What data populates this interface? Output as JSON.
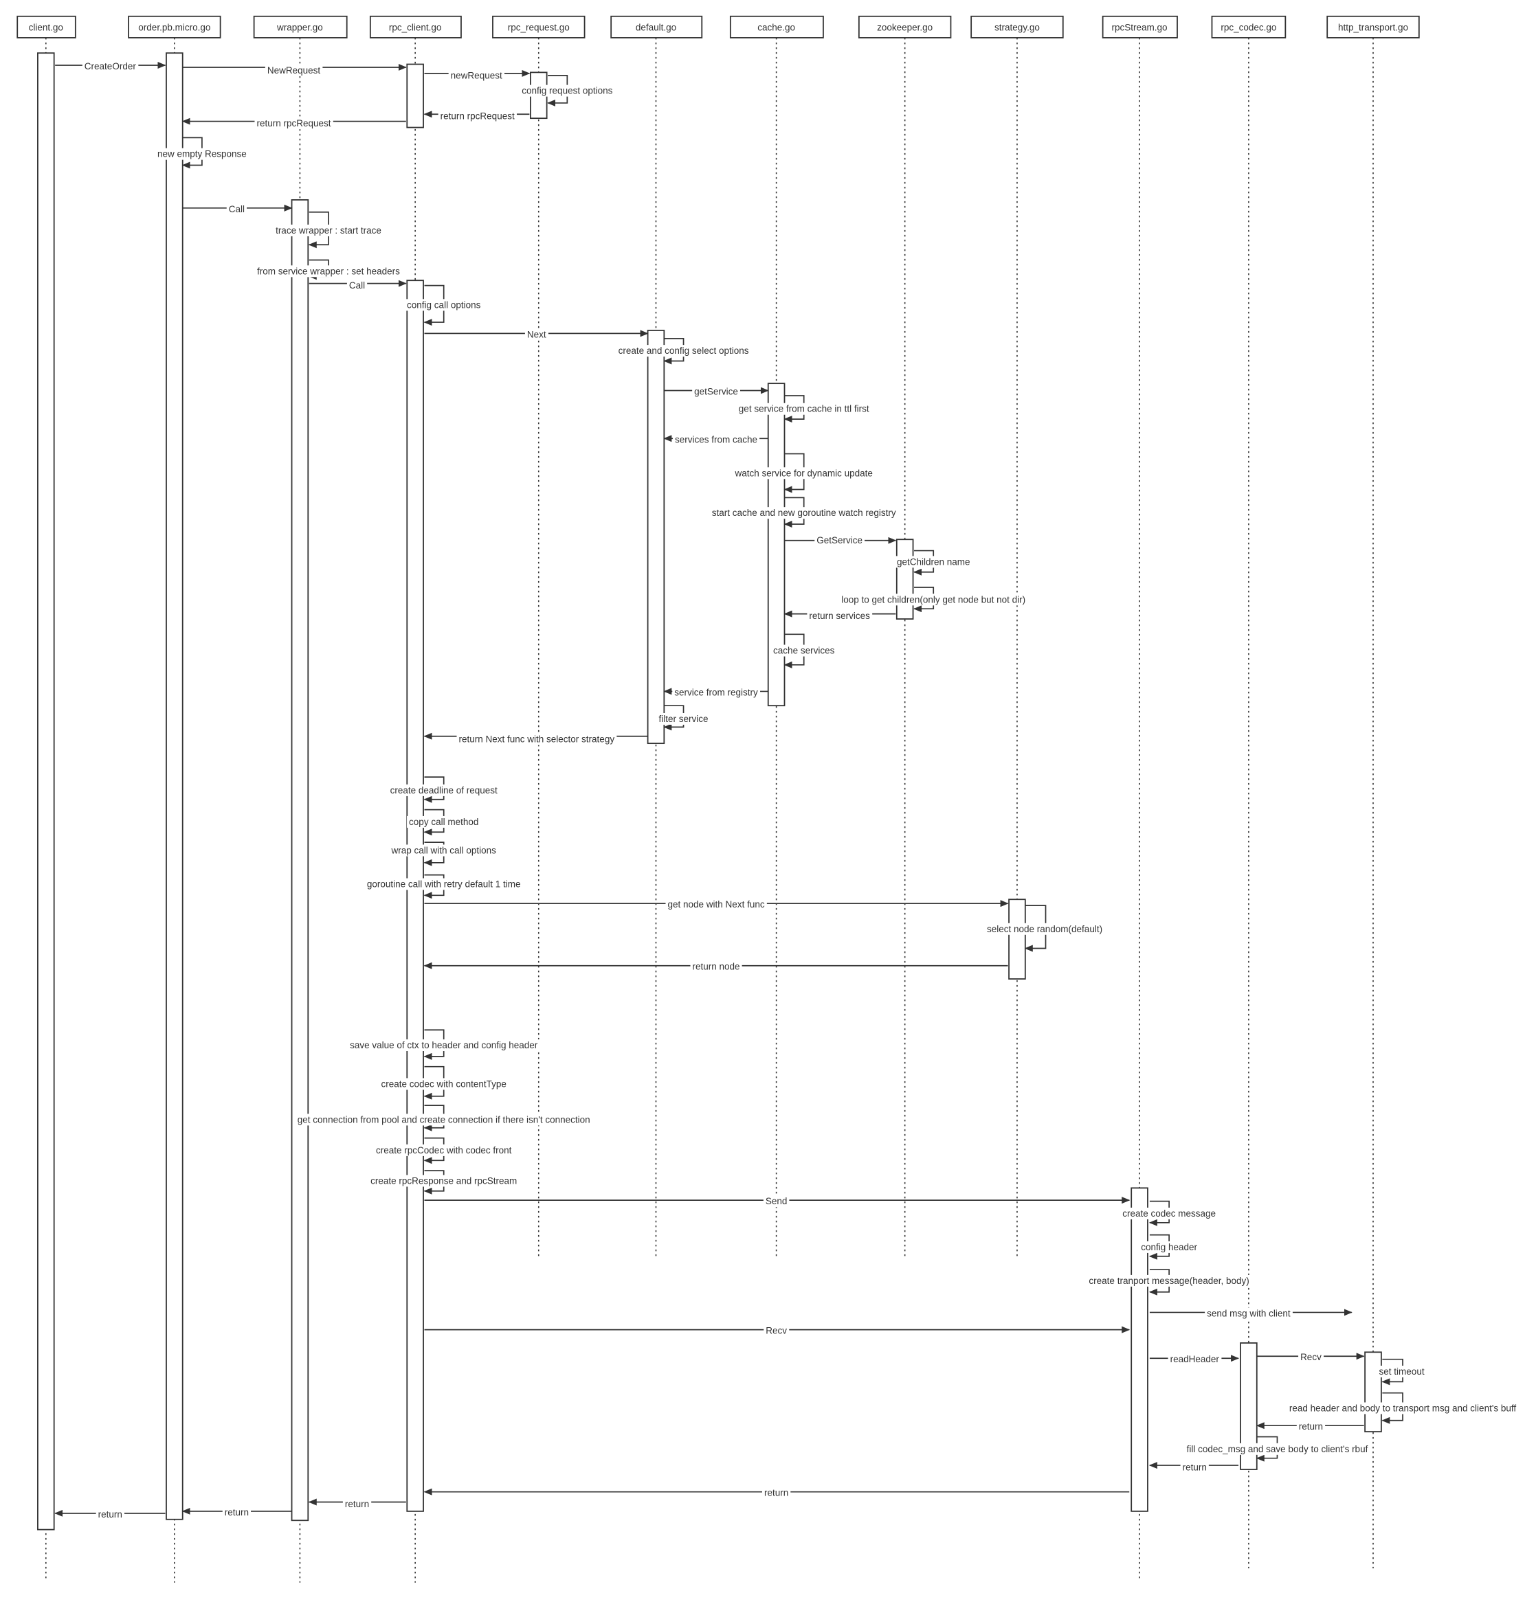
{
  "colors": {
    "line": "#333333",
    "text": "#333333",
    "highlight": "#e03131",
    "background": "#ffffff"
  },
  "participants": [
    {
      "id": "client",
      "label": "client.go"
    },
    {
      "id": "order",
      "label": "order.pb.micro.go"
    },
    {
      "id": "wrapper",
      "label": "wrapper.go"
    },
    {
      "id": "rpc_client",
      "label": "rpc_client.go"
    },
    {
      "id": "rpc_request",
      "label": "rpc_request.go"
    },
    {
      "id": "default",
      "label": "default.go"
    },
    {
      "id": "cache",
      "label": "cache.go"
    },
    {
      "id": "zookeeper",
      "label": "zookeeper.go"
    },
    {
      "id": "strategy",
      "label": "strategy.go"
    },
    {
      "id": "rpcStream",
      "label": "rpcStream.go"
    },
    {
      "id": "rpc_codec",
      "label": "rpc_codec.go"
    },
    {
      "id": "http_transport",
      "label": "http_transport.go"
    }
  ],
  "messages": [
    {
      "id": "create-order",
      "from": "client",
      "to": "order",
      "label": "CreateOrder"
    },
    {
      "id": "new-request",
      "from": "order",
      "to": "rpc_client",
      "label": "NewRequest"
    },
    {
      "id": "new-request-2",
      "from": "rpc_client",
      "to": "rpc_request",
      "label": "newRequest"
    },
    {
      "id": "config-request-options",
      "self": "rpc_request",
      "label": "config request options"
    },
    {
      "id": "return-rpc-request-1",
      "from": "rpc_request",
      "to": "rpc_client",
      "label": "return rpcRequest"
    },
    {
      "id": "return-rpc-request-2",
      "from": "rpc_client",
      "to": "order",
      "label": "return rpcRequest"
    },
    {
      "id": "new-empty-response",
      "self": "order",
      "label": "new empty Response"
    },
    {
      "id": "call-1",
      "from": "order",
      "to": "wrapper",
      "label": "Call"
    },
    {
      "id": "trace-wrapper",
      "self": "wrapper",
      "label": "trace wrapper : start trace"
    },
    {
      "id": "service-wrapper",
      "self": "wrapper",
      "label": "from service wrapper : set headers"
    },
    {
      "id": "call-2",
      "from": "wrapper",
      "to": "rpc_client",
      "label": "Call"
    },
    {
      "id": "config-call-options",
      "self": "rpc_client",
      "label": "config call options"
    },
    {
      "id": "next",
      "from": "rpc_client",
      "to": "default",
      "label": "Next"
    },
    {
      "id": "create-select-options",
      "self": "default",
      "label": "create and config select options"
    },
    {
      "id": "get-service",
      "from": "default",
      "to": "cache",
      "label": "getService"
    },
    {
      "id": "get-from-cache",
      "self": "cache",
      "label": "get service from cache in ttl first"
    },
    {
      "id": "services-from-cache",
      "from": "cache",
      "to": "default",
      "label": "services from cache"
    },
    {
      "id": "watch-service",
      "self": "cache",
      "label": "watch service for dynamic update"
    },
    {
      "id": "start-cache",
      "self": "cache",
      "label": "start cache and new goroutine watch registry"
    },
    {
      "id": "get-service-zk",
      "from": "cache",
      "to": "zookeeper",
      "label": "GetService"
    },
    {
      "id": "get-children-name",
      "self": "zookeeper",
      "label": "getChildren name"
    },
    {
      "id": "loop-get-children",
      "self": "zookeeper",
      "label": "loop to get children(only get node but not dir)"
    },
    {
      "id": "return-services",
      "from": "zookeeper",
      "to": "cache",
      "label": "return services"
    },
    {
      "id": "cache-services",
      "self": "cache",
      "label": "cache services"
    },
    {
      "id": "service-from-registry",
      "from": "cache",
      "to": "default",
      "label": "service from registry"
    },
    {
      "id": "filter-service",
      "self": "default",
      "label": "filter service"
    },
    {
      "id": "return-next-func",
      "from": "default",
      "to": "rpc_client",
      "label": "return Next func with selector strategy"
    },
    {
      "id": "create-deadline",
      "self": "rpc_client",
      "label": "create deadline of request"
    },
    {
      "id": "copy-call-method",
      "self": "rpc_client",
      "label": "copy call method"
    },
    {
      "id": "wrap-call",
      "self": "rpc_client",
      "label": "wrap call with call options"
    },
    {
      "id": "goroutine-call",
      "self": "rpc_client",
      "label": "goroutine call with retry default 1 time",
      "highlight": true
    },
    {
      "id": "get-node",
      "from": "rpc_client",
      "to": "strategy",
      "label": "get node with Next func"
    },
    {
      "id": "select-node",
      "self": "strategy",
      "label": "select node random(default)"
    },
    {
      "id": "return-node",
      "from": "strategy",
      "to": "rpc_client",
      "label": "return node"
    },
    {
      "id": "save-ctx",
      "self": "rpc_client",
      "label": "save value of ctx to header and config header"
    },
    {
      "id": "create-codec",
      "self": "rpc_client",
      "label": "create codec with contentType"
    },
    {
      "id": "get-connection",
      "self": "rpc_client",
      "label": "get connection from pool and create connection if there isn't connection"
    },
    {
      "id": "create-rpc-codec",
      "self": "rpc_client",
      "label": "create rpcCodec with codec front"
    },
    {
      "id": "create-rpc-response",
      "self": "rpc_client",
      "label": "create rpcResponse and rpcStream"
    },
    {
      "id": "send",
      "from": "rpc_client",
      "to": "rpcStream",
      "label": "Send"
    },
    {
      "id": "create-codec-message",
      "self": "rpcStream",
      "label": "create codec message"
    },
    {
      "id": "config-header",
      "self": "rpcStream",
      "label": "config header"
    },
    {
      "id": "create-transport-message",
      "self": "rpcStream",
      "label": "create tranport message(header, body)"
    },
    {
      "id": "send-msg",
      "from": "rpcStream",
      "label": "send msg with client"
    },
    {
      "id": "recv-1",
      "from": "rpc_client",
      "to": "rpcStream",
      "label": "Recv"
    },
    {
      "id": "read-header",
      "from": "rpcStream",
      "to": "rpc_codec",
      "label": "readHeader"
    },
    {
      "id": "recv-2",
      "from": "rpc_codec",
      "to": "http_transport",
      "label": "Recv"
    },
    {
      "id": "set-timeout",
      "self": "http_transport",
      "label": "set timeout"
    },
    {
      "id": "read-header-body",
      "self": "http_transport",
      "label": "read header and body to transport msg and client's buff"
    },
    {
      "id": "return-1",
      "from": "http_transport",
      "to": "rpc_codec",
      "label": "return"
    },
    {
      "id": "fill-codec-msg",
      "self": "rpc_codec",
      "label": "fill codec_msg and save body to client's rbuf"
    },
    {
      "id": "return-2",
      "from": "rpc_codec",
      "to": "rpcStream",
      "label": "return"
    },
    {
      "id": "return-3",
      "from": "rpcStream",
      "to": "rpc_client",
      "label": "return"
    },
    {
      "id": "return-4",
      "from": "rpc_client",
      "to": "wrapper",
      "label": "return"
    },
    {
      "id": "return-5",
      "from": "wrapper",
      "to": "order",
      "label": "return"
    },
    {
      "id": "return-6",
      "from": "order",
      "to": "client",
      "label": "return"
    }
  ]
}
